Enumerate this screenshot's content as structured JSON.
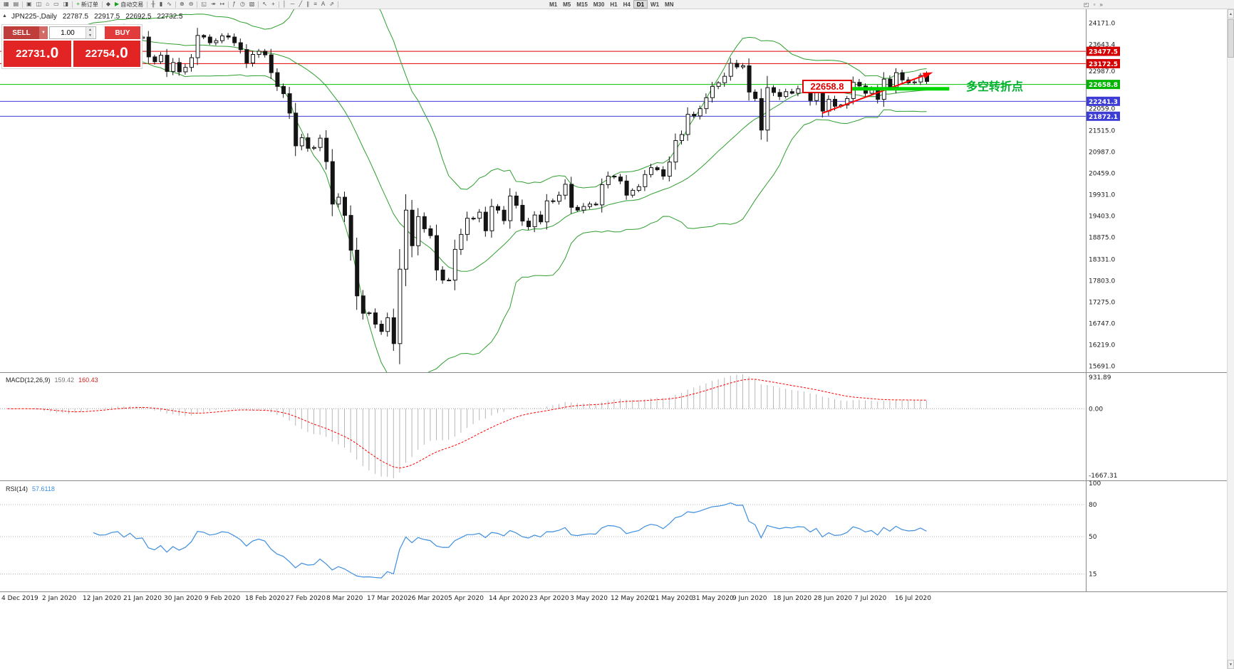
{
  "colors": {
    "bull": "#ffffff",
    "bear": "#141414",
    "band": "#2f9e2f",
    "macd_hist": "#b8b8b8",
    "macd_signal": "#ff0000",
    "rsi": "#3e8ede",
    "axis_text": "#1a1a1a",
    "sep": "#8a8a8a"
  },
  "glyphs": {
    "collapse": "▲",
    "spin_up": "▲",
    "spin_down": "▼",
    "sell_dd": "▼",
    "scroll_up": "▲",
    "scroll_down": "▼"
  },
  "toolbar": {
    "items": [
      {
        "type": "icon",
        "name": "new-chart-icon",
        "glyph": "▦"
      },
      {
        "type": "icon",
        "name": "profiles-icon",
        "glyph": "▤"
      },
      {
        "type": "sep"
      },
      {
        "type": "icon",
        "name": "market-watch-icon",
        "glyph": "▣"
      },
      {
        "type": "icon",
        "name": "data-window-icon",
        "glyph": "◫"
      },
      {
        "type": "icon",
        "name": "navigator-icon",
        "glyph": "⌂"
      },
      {
        "type": "icon",
        "name": "terminal-icon",
        "glyph": "▭"
      },
      {
        "type": "icon",
        "name": "strategy-tester-icon",
        "glyph": "◨"
      },
      {
        "type": "sep"
      },
      {
        "type": "button",
        "name": "new-order-button",
        "label": "新订单",
        "glyph": "+",
        "glyph_color": "#18a018"
      },
      {
        "type": "sep"
      },
      {
        "type": "icon",
        "name": "metaeditor-icon",
        "glyph": "◆"
      },
      {
        "type": "button",
        "name": "autotrading-button",
        "label": "自动交易",
        "glyph": "▶",
        "glyph_color": "#18a018"
      },
      {
        "type": "sep"
      },
      {
        "type": "icon",
        "name": "bar-chart-icon",
        "glyph": "╫"
      },
      {
        "type": "icon",
        "name": "candlestick-chart-icon",
        "glyph": "▮"
      },
      {
        "type": "icon",
        "name": "line-chart-icon",
        "glyph": "∿"
      },
      {
        "type": "sep"
      },
      {
        "type": "icon",
        "name": "zoom-in-icon",
        "glyph": "⊕"
      },
      {
        "type": "icon",
        "name": "zoom-out-icon",
        "glyph": "⊖"
      },
      {
        "type": "sep"
      },
      {
        "type": "icon",
        "name": "tile-windows-icon",
        "glyph": "◱"
      },
      {
        "type": "icon",
        "name": "auto-scroll-icon",
        "glyph": "↠"
      },
      {
        "type": "icon",
        "name": "chart-shift-icon",
        "glyph": "↦"
      },
      {
        "type": "sep"
      },
      {
        "type": "icon",
        "name": "indicators-icon",
        "glyph": "ƒ"
      },
      {
        "type": "icon",
        "name": "periods-icon",
        "glyph": "◷"
      },
      {
        "type": "icon",
        "name": "templates-icon",
        "glyph": "▧"
      },
      {
        "type": "sep"
      },
      {
        "type": "icon",
        "name": "cursor-icon",
        "glyph": "↖"
      },
      {
        "type": "icon",
        "name": "crosshair-icon",
        "glyph": "+"
      },
      {
        "type": "sep"
      },
      {
        "type": "icon",
        "name": "vertical-line-icon",
        "glyph": "│"
      },
      {
        "type": "icon",
        "name": "horizontal-line-icon",
        "glyph": "─"
      },
      {
        "type": "icon",
        "name": "trendline-icon",
        "glyph": "╱"
      },
      {
        "type": "icon",
        "name": "channel-icon",
        "glyph": "∥"
      },
      {
        "type": "icon",
        "name": "fibonacci-icon",
        "glyph": "≡"
      },
      {
        "type": "icon",
        "name": "text-label-icon",
        "glyph": "A"
      },
      {
        "type": "icon",
        "name": "arrows-icon",
        "glyph": "⇗"
      },
      {
        "type": "sep"
      },
      {
        "type": "gap"
      },
      {
        "type": "tf",
        "name": "tf-m1-button",
        "label": "M1"
      },
      {
        "type": "tf",
        "name": "tf-m5-button",
        "label": "M5"
      },
      {
        "type": "tf",
        "name": "tf-m15-button",
        "label": "M15"
      },
      {
        "type": "tf",
        "name": "tf-m30-button",
        "label": "M30"
      },
      {
        "type": "tf",
        "name": "tf-h1-button",
        "label": "H1"
      },
      {
        "type": "tf",
        "name": "tf-h4-button",
        "label": "H4"
      },
      {
        "type": "tf",
        "name": "tf-d1-button",
        "label": "D1",
        "active": true
      },
      {
        "type": "tf",
        "name": "tf-w1-button",
        "label": "W1"
      },
      {
        "type": "tf",
        "name": "tf-mn-button",
        "label": "MN"
      }
    ],
    "right_items": [
      {
        "name": "dock-window-icon",
        "glyph": "◰"
      },
      {
        "name": "new-window-icon",
        "glyph": "▫"
      },
      {
        "name": "more-tools-icon",
        "glyph": "»"
      }
    ]
  },
  "symbol_line": {
    "symbol": "JPN225-,Daily",
    "open": "22787.5",
    "high": "22917.5",
    "low": "22692.5",
    "close": "22732.5"
  },
  "trade_panel": {
    "sell_label": "SELL",
    "buy_label": "BUY",
    "volume": "1.00",
    "sell_price_main": "22731",
    "sell_price_frac": ".0",
    "buy_price_main": "22754",
    "buy_price_frac": ".0"
  },
  "chart_data": {
    "type": "candlestick",
    "symbol": "JPN225-",
    "timeframe": "Daily",
    "title": "JPN225-,Daily 22787.5 22917.5 22692.5 22732.5",
    "x_labels": [
      "4 Dec 2019",
      "2 Jan 2020",
      "12 Jan 2020",
      "21 Jan 2020",
      "30 Jan 2020",
      "9 Feb 2020",
      "18 Feb 2020",
      "27 Feb 2020",
      "8 Mar 2020",
      "17 Mar 2020",
      "26 Mar 2020",
      "5 Apr 2020",
      "14 Apr 2020",
      "23 Apr 2020",
      "3 May 2020",
      "12 May 2020",
      "21 May 2020",
      "31 May 2020",
      "9 Jun 2020",
      "18 Jun 2020",
      "28 Jun 2020",
      "7 Jul 2020",
      "16 Jul 2020"
    ],
    "closes": [
      23830,
      23800,
      23920,
      23840,
      23660,
      23700,
      23320,
      23420,
      23200,
      23580,
      23210,
      23740,
      23850,
      23920,
      24030,
      23920,
      23930,
      24040,
      24080,
      23860,
      24030,
      23800,
      23830,
      23340,
      23220,
      23380,
      22980,
      23200,
      22970,
      23080,
      23320,
      23870,
      23830,
      23690,
      23740,
      23860,
      23830,
      23690,
      23520,
      23190,
      23400,
      23480,
      23390,
      22950,
      22610,
      22430,
      21950,
      21140,
      21340,
      21080,
      21100,
      21330,
      20750,
      19700,
      19870,
      19420,
      18560,
      17430,
      17000,
      17010,
      16730,
      16550,
      16890,
      16250,
      18090,
      19550,
      18670,
      19390,
      19090,
      18920,
      18070,
      17820,
      17820,
      18580,
      18950,
      19350,
      19350,
      19500,
      19040,
      19640,
      19550,
      19290,
      19900,
      19670,
      19280,
      19140,
      19430,
      19260,
      19780,
      19770,
      19920,
      20190,
      19620,
      19550,
      19640,
      19700,
      19680,
      20180,
      20390,
      20370,
      20270,
      19920,
      20040,
      20130,
      20430,
      20600,
      20550,
      20390,
      20740,
      21270,
      21420,
      21920,
      21880,
      22060,
      22330,
      22610,
      22700,
      22860,
      23180,
      23090,
      23120,
      22470,
      22310,
      21530,
      22580,
      22460,
      22360,
      22480,
      22440,
      22550,
      22530,
      22260,
      22510,
      22000,
      22290,
      22120,
      22150,
      22310,
      22710,
      22620,
      22440,
      22530,
      22290,
      22790,
      22590,
      22950,
      22770,
      22700,
      22720,
      22880,
      22732.5
    ],
    "y_axis": {
      "top_price": 24500,
      "bottom_price": 15560,
      "ticks": [
        "24171.0",
        "23643.4",
        "22987.0",
        "22059.0",
        "21515.0",
        "20987.0",
        "20459.0",
        "19931.0",
        "19403.0",
        "18875.0",
        "18331.0",
        "17803.0",
        "17275.0",
        "16747.0",
        "16219.0",
        "15691.0"
      ]
    },
    "axis_flags": [
      {
        "value": "23477.5",
        "price": 23477.5,
        "bg": "#d40000"
      },
      {
        "value": "23172.5",
        "price": 23172.5,
        "bg": "#d40000"
      },
      {
        "value": "22658.8",
        "price": 22658.8,
        "bg": "#00b400"
      },
      {
        "value": "22241.3",
        "price": 22241.3,
        "bg": "#3d3dd6"
      },
      {
        "value": "21872.1",
        "price": 21872.1,
        "bg": "#3d3dd6"
      }
    ],
    "h_lines": [
      {
        "price": 23477.5,
        "color": "#e00000"
      },
      {
        "price": 23172.5,
        "color": "#e00000"
      },
      {
        "price": 22658.8,
        "color": "#00c000"
      },
      {
        "price": 22241.3,
        "color": "#3d3dd6"
      },
      {
        "price": 21872.1,
        "color": "#3d3dd6"
      }
    ],
    "trendline": {
      "i1": 133,
      "price1": 21950,
      "i2": 150.5,
      "price2": 22930,
      "color": "#ff0000"
    },
    "green_segment": {
      "i1": 138,
      "i2": 154,
      "price": 22550,
      "color": "#00d800",
      "width": 5
    },
    "price_flag_label": "22658.8",
    "annotation": "多空转折点",
    "bollinger": {
      "period": 20,
      "deviation": 2
    },
    "macd": {
      "label": "MACD(12,26,9)",
      "value1": "159.42",
      "value2": "160.43",
      "params": [
        12,
        26,
        9
      ],
      "axis_labels": [
        "931.89",
        "0.00",
        "-1667.31"
      ]
    },
    "rsi": {
      "label": "RSI(14)",
      "value": "57.6118",
      "period": 14,
      "axis_labels": [
        "100",
        "80",
        "50",
        "15"
      ],
      "levels": [
        80,
        50,
        15
      ]
    }
  }
}
